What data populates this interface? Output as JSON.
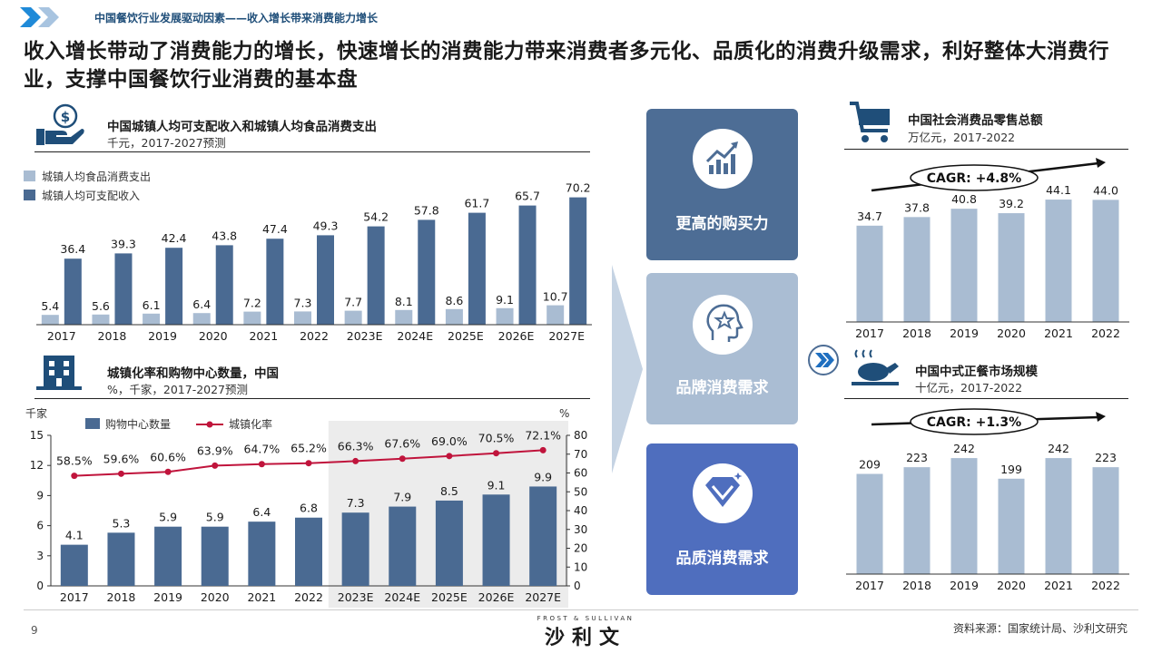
{
  "header": {
    "breadcrumb": "中国餐饮行业发展驱动因素——收入增长带来消费能力增长",
    "headline": "收入增长带动了消费能力的增长，快速增长的消费能力带来消费者多元化、品质化的消费升级需求，利好整体大消费行业，支撑中国餐饮行业消费的基本盘"
  },
  "colors": {
    "dark_blue": "#4a6a92",
    "light_blue": "#a9bcd2",
    "red": "#c0143c",
    "box_top": "#4d6d95",
    "box_mid": "#aabdd3",
    "box_bottom": "#4f6ebe"
  },
  "icons": {
    "income": "money-hand-icon",
    "urban": "building-icon",
    "retail": "shopping-cart-icon",
    "catering": "roast-chicken-icon",
    "purchase": "growth-chart-icon",
    "brand": "head-star-icon",
    "quality": "diamond-icon",
    "arrow": "double-chevron-icon"
  },
  "chart_data": [
    {
      "id": "income",
      "type": "bar",
      "title": "中国城镇人均可支配收入和城镇人均食品消费支出",
      "subtitle": "千元，2017-2027预测",
      "categories": [
        "2017",
        "2018",
        "2019",
        "2020",
        "2021",
        "2022",
        "2023E",
        "2024E",
        "2025E",
        "2026E",
        "2027E"
      ],
      "series": [
        {
          "name": "城镇人均食品消费支出",
          "values": [
            5.4,
            5.6,
            6.1,
            6.4,
            7.2,
            7.3,
            7.7,
            8.1,
            8.6,
            9.1,
            10.7
          ],
          "labels": [
            "5.4",
            "5.6",
            "6.1",
            "6.4",
            "7.2",
            "7.3",
            "7.7",
            "8.1",
            "8.6",
            "9.1",
            "10.7"
          ]
        },
        {
          "name": "城镇人均可支配收入",
          "values": [
            36.4,
            39.3,
            42.4,
            43.8,
            47.4,
            49.3,
            54.2,
            57.8,
            61.7,
            65.7,
            70.2
          ],
          "labels": [
            "36.4",
            "39.3",
            "42.4",
            "43.8",
            "47.4",
            "49.3",
            "54.2",
            "57.8",
            "61.7",
            "65.7",
            "70.2"
          ]
        }
      ],
      "ylim": [
        0,
        75
      ],
      "legend": "top-left"
    },
    {
      "id": "urban",
      "type": "bar",
      "title": "城镇化率和购物中心数量，中国",
      "subtitle": "%，千家，2017-2027预测",
      "left_unit": "千家",
      "right_unit": "%",
      "categories": [
        "2017",
        "2018",
        "2019",
        "2020",
        "2021",
        "2022",
        "2023E",
        "2024E",
        "2025E",
        "2026E",
        "2027E"
      ],
      "series": [
        {
          "name": "购物中心数量",
          "type": "bar",
          "axis": "left",
          "values": [
            4.1,
            5.3,
            5.9,
            5.9,
            6.4,
            6.8,
            7.3,
            7.9,
            8.5,
            9.1,
            9.9
          ],
          "labels": [
            "4.1",
            "5.3",
            "5.9",
            "5.9",
            "6.4",
            "6.8",
            "7.3",
            "7.9",
            "8.5",
            "9.1",
            "9.9"
          ]
        },
        {
          "name": "城镇化率",
          "type": "line",
          "axis": "right",
          "values": [
            58.5,
            59.6,
            60.6,
            63.9,
            64.7,
            65.2,
            66.3,
            67.6,
            69.0,
            70.5,
            72.1
          ],
          "labels": [
            "58.5%",
            "59.6%",
            "60.6%",
            "63.9%",
            "64.7%",
            "65.2%",
            "66.3%",
            "67.6%",
            "69.0%",
            "70.5%",
            "72.1%"
          ]
        }
      ],
      "left_ticks": [
        "0",
        "3",
        "6",
        "9",
        "12",
        "15"
      ],
      "right_ticks": [
        "0",
        "10",
        "20",
        "30",
        "40",
        "50",
        "60",
        "70",
        "80"
      ],
      "ylim_left": [
        0,
        15
      ],
      "ylim_right": [
        0,
        80
      ],
      "forecast_shaded_from": "2023E",
      "legend": "top"
    },
    {
      "id": "retail",
      "type": "bar",
      "title": "中国社会消费品零售总额",
      "subtitle": "万亿元，2017-2022",
      "categories": [
        "2017",
        "2018",
        "2019",
        "2020",
        "2021",
        "2022"
      ],
      "values": [
        34.7,
        37.8,
        40.8,
        39.2,
        44.1,
        44.0
      ],
      "labels": [
        "34.7",
        "37.8",
        "40.8",
        "39.2",
        "44.1",
        "44.0"
      ],
      "annotation": "CAGR: +4.8%",
      "ylim": [
        0,
        50
      ]
    },
    {
      "id": "catering",
      "type": "bar",
      "title": "中国中式正餐市场规模",
      "subtitle": "十亿元，2017-2022",
      "categories": [
        "2017",
        "2018",
        "2019",
        "2020",
        "2021",
        "2022"
      ],
      "values": [
        209,
        223,
        242,
        199,
        242,
        223
      ],
      "labels": [
        "209",
        "223",
        "242",
        "199",
        "242",
        "223"
      ],
      "annotation": "CAGR: +1.3%",
      "ylim": [
        0,
        280
      ]
    }
  ],
  "drivers": [
    {
      "label": "更高的购买力"
    },
    {
      "label": "品牌消费需求"
    },
    {
      "label": "品质消费需求"
    }
  ],
  "footer": {
    "page_number": "9",
    "brand_en": "FROST & SULLIVAN",
    "brand_cn": "沙利文",
    "source": "资料来源：国家统计局、沙利文研究"
  }
}
